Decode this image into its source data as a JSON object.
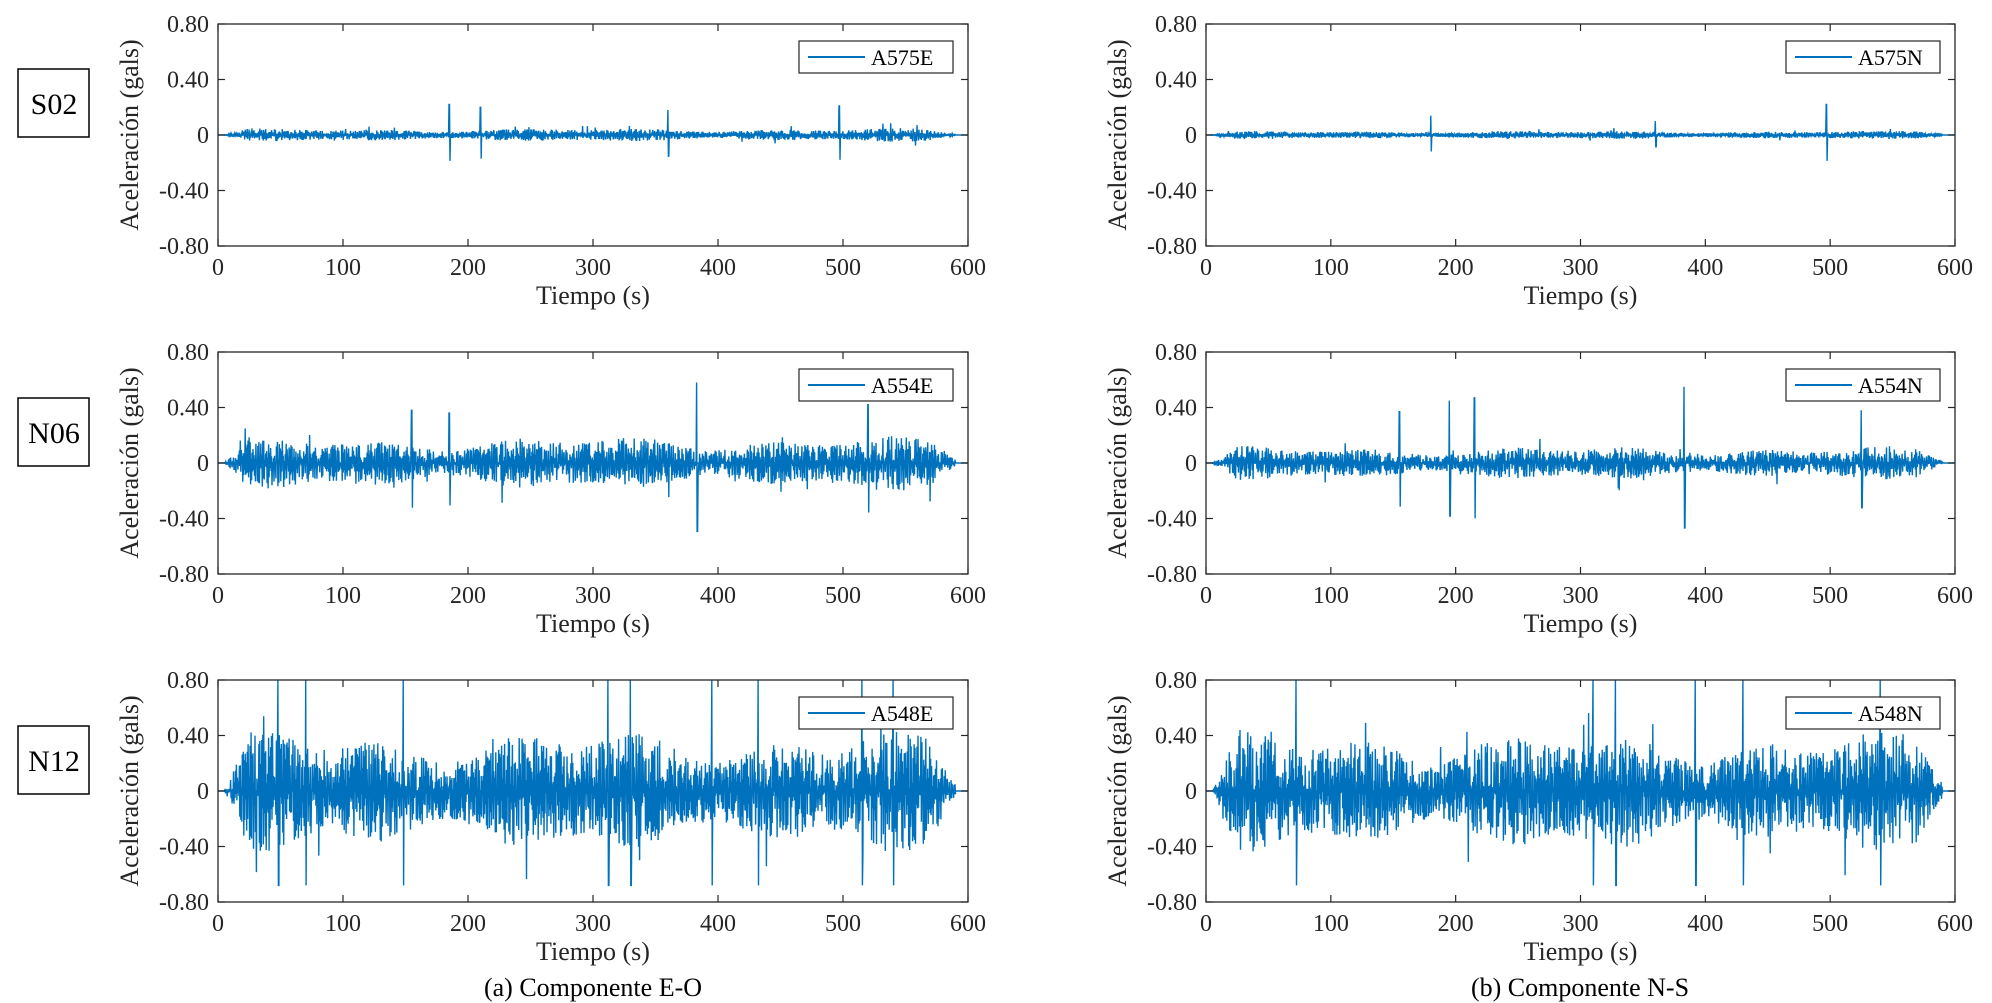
{
  "figure": {
    "captions": [
      "(a) Componente E-O",
      "(b) Componente N-S"
    ],
    "row_labels": [
      "S02",
      "N06",
      "N12"
    ],
    "series_color": "#0072BD"
  },
  "chart_data": [
    {
      "type": "line",
      "station": "S02",
      "component": "E-O",
      "legend": "A575E",
      "amplitude": 0.04,
      "peaks": [
        [
          185,
          0.22
        ],
        [
          210,
          0.2
        ],
        [
          360,
          0.18
        ],
        [
          497,
          0.21
        ]
      ],
      "xlabel": "Tiempo (s)",
      "ylabel": "Aceleración (gals)",
      "xlim": [
        0,
        600
      ],
      "ylim": [
        -0.8,
        0.8
      ],
      "xticks": [
        0,
        100,
        200,
        300,
        400,
        500,
        600
      ],
      "yticks": [
        "0.80",
        "0.40",
        "0",
        "-0.40",
        "-0.80"
      ]
    },
    {
      "type": "line",
      "station": "S02",
      "component": "N-S",
      "legend": "A575N",
      "amplitude": 0.025,
      "peaks": [
        [
          180,
          0.14
        ],
        [
          360,
          0.1
        ],
        [
          497,
          0.22
        ]
      ],
      "xlabel": "Tiempo (s)",
      "ylabel": "Aceleración (gals)",
      "xlim": [
        0,
        600
      ],
      "ylim": [
        -0.8,
        0.8
      ],
      "xticks": [
        0,
        100,
        200,
        300,
        400,
        500,
        600
      ],
      "yticks": [
        "0.80",
        "0.40",
        "0",
        "-0.40",
        "-0.80"
      ]
    },
    {
      "type": "line",
      "station": "N06",
      "component": "E-O",
      "legend": "A554E",
      "amplitude": 0.16,
      "peaks": [
        [
          155,
          0.38
        ],
        [
          185,
          0.36
        ],
        [
          383,
          0.58
        ],
        [
          520,
          0.42
        ]
      ],
      "xlabel": "Tiempo (s)",
      "ylabel": "Aceleración (gals)",
      "xlim": [
        0,
        600
      ],
      "ylim": [
        -0.8,
        0.8
      ],
      "xticks": [
        0,
        100,
        200,
        300,
        400,
        500,
        600
      ],
      "yticks": [
        "0.80",
        "0.40",
        "0",
        "-0.40",
        "-0.80"
      ]
    },
    {
      "type": "line",
      "station": "N06",
      "component": "N-S",
      "legend": "A554N",
      "amplitude": 0.1,
      "peaks": [
        [
          155,
          0.37
        ],
        [
          195,
          0.45
        ],
        [
          215,
          0.47
        ],
        [
          383,
          0.55
        ],
        [
          525,
          0.38
        ]
      ],
      "xlabel": "Tiempo (s)",
      "ylabel": "Aceleración (gals)",
      "xlim": [
        0,
        600
      ],
      "ylim": [
        -0.8,
        0.8
      ],
      "xticks": [
        0,
        100,
        200,
        300,
        400,
        500,
        600
      ],
      "yticks": [
        "0.80",
        "0.40",
        "0",
        "-0.40",
        "-0.80"
      ]
    },
    {
      "type": "line",
      "station": "N12",
      "component": "E-O",
      "legend": "A548E",
      "amplitude": 0.36,
      "peaks": [
        [
          48,
          0.8
        ],
        [
          70,
          0.8
        ],
        [
          148,
          0.8
        ],
        [
          312,
          0.8
        ],
        [
          330,
          0.8
        ],
        [
          395,
          0.8
        ],
        [
          432,
          0.8
        ],
        [
          515,
          0.8
        ],
        [
          540,
          0.8
        ]
      ],
      "xlabel": "Tiempo (s)",
      "ylabel": "Aceleración (gals)",
      "xlim": [
        0,
        600
      ],
      "ylim": [
        -0.8,
        0.8
      ],
      "xticks": [
        0,
        100,
        200,
        300,
        400,
        500,
        600
      ],
      "yticks": [
        "0.80",
        "0.40",
        "0",
        "-0.40",
        "-0.80"
      ]
    },
    {
      "type": "line",
      "station": "N12",
      "component": "N-S",
      "legend": "A548N",
      "amplitude": 0.36,
      "peaks": [
        [
          72,
          0.8
        ],
        [
          310,
          0.8
        ],
        [
          328,
          0.8
        ],
        [
          392,
          0.8
        ],
        [
          430,
          0.8
        ],
        [
          540,
          0.8
        ]
      ],
      "xlabel": "Tiempo (s)",
      "ylabel": "Aceleración (gals)",
      "xlim": [
        0,
        600
      ],
      "ylim": [
        -0.8,
        0.8
      ],
      "xticks": [
        0,
        100,
        200,
        300,
        400,
        500,
        600
      ],
      "yticks": [
        "0.80",
        "0.40",
        "0",
        "-0.40",
        "-0.80"
      ]
    }
  ]
}
